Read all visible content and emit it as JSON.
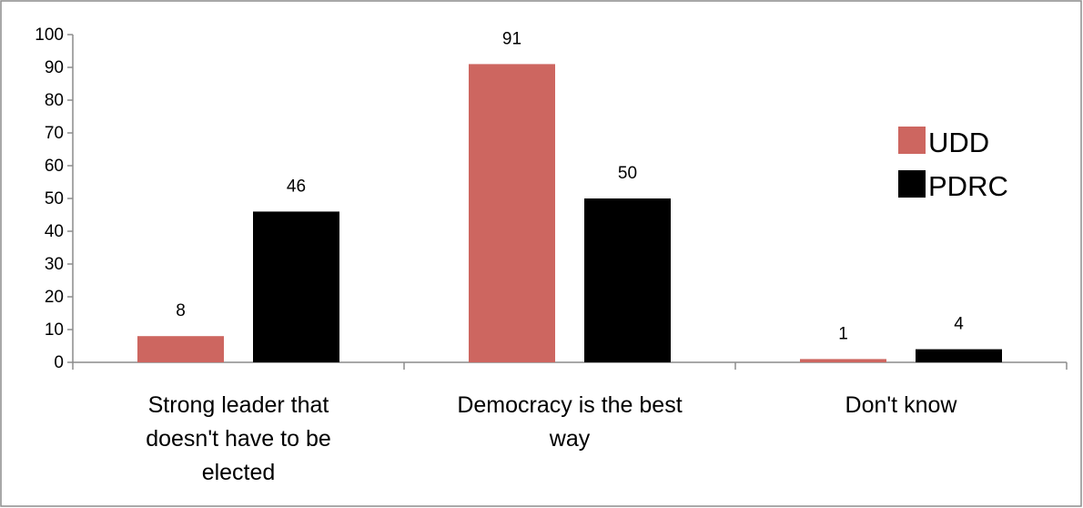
{
  "chart_data": {
    "type": "bar",
    "categories": [
      [
        "Strong leader that",
        "doesn't have to be",
        "elected"
      ],
      [
        "Democracy is the best",
        "way"
      ],
      [
        "Don't know"
      ]
    ],
    "series": [
      {
        "name": "UDD",
        "values": [
          8,
          91,
          1
        ],
        "color": "#cd6660"
      },
      {
        "name": "PDRC",
        "values": [
          46,
          50,
          4
        ],
        "color": "#000000"
      }
    ],
    "ylim": [
      0,
      100
    ],
    "yticks": [
      0,
      10,
      20,
      30,
      40,
      50,
      60,
      70,
      80,
      90,
      100
    ],
    "title": "",
    "xlabel": "",
    "ylabel": "",
    "grid": false,
    "legend": "right",
    "data_labels": true
  }
}
